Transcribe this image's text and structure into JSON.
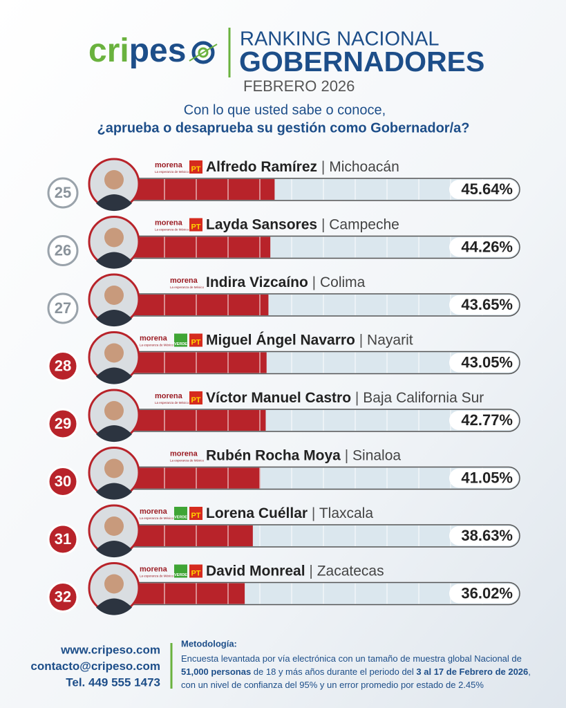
{
  "header": {
    "logo": [
      "cri",
      "pes"
    ],
    "title_line1": "RANKING NACIONAL",
    "title_line2": "GOBERNADORES",
    "period": "FEBRERO 2026",
    "question_line1": "Con lo que usted sabe o conoce,",
    "question_line2": "¿aprueba o desaprueba su gestión como Gobernador/a?"
  },
  "morena_tagline": "La esperanza de México",
  "separator": "|",
  "rows": [
    {
      "rank": 25,
      "name": "Alfredo Ramírez",
      "state": "Michoacán",
      "parties": [
        "morena",
        "PT"
      ],
      "value": 45.64,
      "value_label": "45.64%",
      "highlight": false
    },
    {
      "rank": 26,
      "name": "Layda Sansores",
      "state": "Campeche",
      "parties": [
        "morena",
        "PT"
      ],
      "value": 44.26,
      "value_label": "44.26%",
      "highlight": false
    },
    {
      "rank": 27,
      "name": "Indira Vizcaíno",
      "state": "Colima",
      "parties": [
        "morena"
      ],
      "value": 43.65,
      "value_label": "43.65%",
      "highlight": false
    },
    {
      "rank": 28,
      "name": "Miguel Ángel Navarro",
      "state": "Nayarit",
      "parties": [
        "morena",
        "VERDE",
        "PT"
      ],
      "value": 43.05,
      "value_label": "43.05%",
      "highlight": true
    },
    {
      "rank": 29,
      "name": "Víctor Manuel Castro",
      "state": "Baja California Sur",
      "parties": [
        "morena",
        "PT"
      ],
      "value": 42.77,
      "value_label": "42.77%",
      "highlight": true
    },
    {
      "rank": 30,
      "name": "Rubén Rocha Moya",
      "state": "Sinaloa",
      "parties": [
        "morena"
      ],
      "value": 41.05,
      "value_label": "41.05%",
      "highlight": true
    },
    {
      "rank": 31,
      "name": "Lorena Cuéllar",
      "state": "Tlaxcala",
      "parties": [
        "morena",
        "VERDE",
        "PT"
      ],
      "value": 38.63,
      "value_label": "38.63%",
      "highlight": true
    },
    {
      "rank": 32,
      "name": "David Monreal",
      "state": "Zacatecas",
      "parties": [
        "morena",
        "VERDE",
        "PT"
      ],
      "value": 36.02,
      "value_label": "36.02%",
      "highlight": true
    }
  ],
  "footer": {
    "contacts": [
      "www.cripeso.com",
      "contacto@cripeso.com",
      "Tel. 449 555 1473"
    ],
    "methodology_title": "Metodología:",
    "methodology_lines": [
      [
        {
          "text": "Encuesta levantada por vía electrónica con un tamaño de muestra global Nacional de",
          "bold": false
        }
      ],
      [
        {
          "text": "51,000 personas",
          "bold": true
        },
        {
          "text": " de 18 y más años durante el periodo del ",
          "bold": false
        },
        {
          "text": "3 al 17 de Febrero de 2026",
          "bold": true
        },
        {
          "text": ",",
          "bold": false
        }
      ],
      [
        {
          "text": "con un nivel de confianza del 95% y un error promedio por estado de 2.45%",
          "bold": false
        }
      ]
    ]
  }
}
